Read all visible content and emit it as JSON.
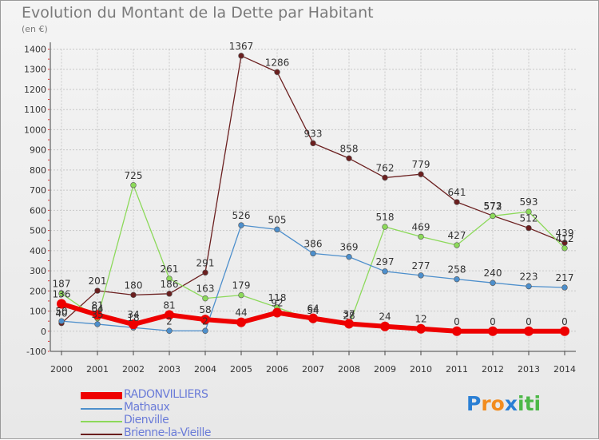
{
  "title": "Evolution du Montant de la Dette par Habitant",
  "subtitle": "(en €)",
  "logo": {
    "text": "Proxiti",
    "letters": [
      "P",
      "r",
      "o",
      "x",
      "i",
      "t",
      "i"
    ],
    "colors": [
      "#2a7fd4",
      "#f28c1e",
      "#f28c1e",
      "#2a7fd4",
      "#4db848",
      "#4db848",
      "#4db848"
    ]
  },
  "chart_data": {
    "type": "line",
    "title": "Evolution du Montant de la Dette par Habitant",
    "ylabel": "(en €)",
    "xlabel": "",
    "ylim": [
      -100,
      1400
    ],
    "yticks": [
      -100,
      0,
      100,
      200,
      300,
      400,
      500,
      600,
      700,
      800,
      900,
      1000,
      1100,
      1200,
      1300,
      1400
    ],
    "x": [
      2000,
      2001,
      2002,
      2003,
      2004,
      2005,
      2006,
      2007,
      2008,
      2009,
      2010,
      2011,
      2012,
      2013,
      2014
    ],
    "grid": true,
    "series": [
      {
        "name": "Brienne-la-Vieille",
        "color": "#6b1f1f",
        "width": 1.3,
        "markers": true,
        "values": [
          40,
          201,
          180,
          186,
          291,
          1367,
          1286,
          933,
          858,
          762,
          779,
          641,
          573,
          512,
          439
        ],
        "labels": [
          true,
          true,
          true,
          true,
          true,
          true,
          true,
          true,
          true,
          true,
          true,
          true,
          true,
          true,
          true
        ]
      },
      {
        "name": "Dienville",
        "color": "#8cd95a",
        "width": 1.3,
        "markers": true,
        "values": [
          187,
          64,
          725,
          261,
          163,
          179,
          118,
          54,
          28,
          518,
          469,
          427,
          572,
          593,
          412
        ],
        "labels": [
          true,
          true,
          true,
          true,
          true,
          true,
          true,
          true,
          true,
          true,
          true,
          true,
          true,
          true,
          true
        ]
      },
      {
        "name": "Mathaux",
        "color": "#4d8fcc",
        "width": 1.3,
        "markers": true,
        "values": [
          50,
          35,
          18,
          2,
          2,
          526,
          505,
          386,
          369,
          297,
          277,
          258,
          240,
          223,
          217
        ],
        "labels": [
          true,
          true,
          true,
          true,
          true,
          true,
          true,
          true,
          true,
          true,
          true,
          true,
          true,
          true,
          true
        ]
      },
      {
        "name": "RADONVILLIERS",
        "color": "#ee0000",
        "width": 6,
        "markers": true,
        "values": [
          136,
          81,
          34,
          81,
          58,
          44,
          92,
          64,
          37,
          24,
          12,
          0,
          0,
          0,
          0
        ],
        "labels": [
          true,
          true,
          true,
          true,
          true,
          true,
          true,
          true,
          true,
          true,
          true,
          true,
          true,
          true,
          true
        ]
      }
    ],
    "legend": [
      "RADONVILLIERS",
      "Mathaux",
      "Dienville",
      "Brienne-la-Vieille"
    ]
  }
}
